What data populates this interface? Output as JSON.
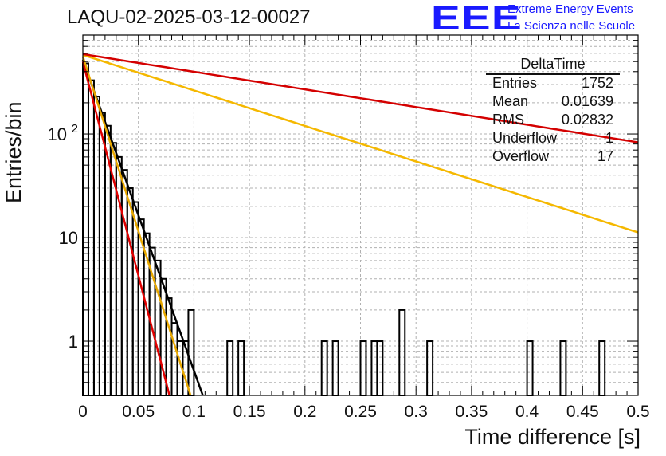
{
  "title": "LAQU-02-2025-03-12-00027",
  "logo": {
    "text": "EEE",
    "line1": "Extreme Energy Events",
    "line2": "La Scienza nelle Scuole",
    "color": "#1a1aff"
  },
  "stats_box": {
    "name": "DeltaTime",
    "rows": [
      {
        "label": "Entries",
        "value": "1752"
      },
      {
        "label": "Mean",
        "value": "0.01639"
      },
      {
        "label": "RMS",
        "value": "0.02832"
      },
      {
        "label": "Underflow",
        "value": "1"
      },
      {
        "label": "Overflow",
        "value": "17"
      }
    ]
  },
  "chart_data": {
    "type": "histogram",
    "xlabel": "Time difference [s]",
    "ylabel": "Entries/bin",
    "xlim": [
      0,
      0.5
    ],
    "ylim": [
      0.3,
      900
    ],
    "log_y": true,
    "grid": true,
    "x_ticks": [
      "0",
      "0.05",
      "0.1",
      "0.15",
      "0.2",
      "0.25",
      "0.3",
      "0.35",
      "0.4",
      "0.45",
      "0.5"
    ],
    "y_tick_labels": [
      {
        "value": 1,
        "label": "1"
      },
      {
        "value": 10,
        "label": "10"
      },
      {
        "value": 100,
        "label": "10",
        "exp": "2"
      }
    ],
    "bin_width": 0.005,
    "histogram": [
      {
        "x": 0.0,
        "y": 480
      },
      {
        "x": 0.005,
        "y": 330
      },
      {
        "x": 0.01,
        "y": 230
      },
      {
        "x": 0.015,
        "y": 160
      },
      {
        "x": 0.02,
        "y": 120
      },
      {
        "x": 0.025,
        "y": 82
      },
      {
        "x": 0.03,
        "y": 60
      },
      {
        "x": 0.035,
        "y": 45
      },
      {
        "x": 0.04,
        "y": 30
      },
      {
        "x": 0.045,
        "y": 22
      },
      {
        "x": 0.05,
        "y": 15
      },
      {
        "x": 0.055,
        "y": 11
      },
      {
        "x": 0.06,
        "y": 8
      },
      {
        "x": 0.065,
        "y": 6
      },
      {
        "x": 0.07,
        "y": 4
      },
      {
        "x": 0.075,
        "y": 2.6
      },
      {
        "x": 0.08,
        "y": 1.5
      },
      {
        "x": 0.085,
        "y": 1
      },
      {
        "x": 0.09,
        "y": 1
      },
      {
        "x": 0.095,
        "y": 2
      },
      {
        "x": 0.13,
        "y": 1
      },
      {
        "x": 0.14,
        "y": 1
      },
      {
        "x": 0.215,
        "y": 1
      },
      {
        "x": 0.225,
        "y": 1
      },
      {
        "x": 0.25,
        "y": 1
      },
      {
        "x": 0.26,
        "y": 1
      },
      {
        "x": 0.265,
        "y": 1
      },
      {
        "x": 0.285,
        "y": 2
      },
      {
        "x": 0.31,
        "y": 1
      },
      {
        "x": 0.4,
        "y": 1
      },
      {
        "x": 0.43,
        "y": 1
      },
      {
        "x": 0.465,
        "y": 1
      }
    ],
    "fits": [
      {
        "color": "#000000",
        "x": [
          0.0,
          0.108
        ],
        "y": [
          520,
          0.3
        ]
      },
      {
        "color": "#e8a800",
        "x": [
          0.0,
          0.097
        ],
        "y": [
          560,
          0.3
        ]
      },
      {
        "color": "#e00000",
        "x": [
          0.0,
          0.078
        ],
        "y": [
          500,
          0.3
        ]
      },
      {
        "color": "#f5b800",
        "x": [
          0.0,
          0.5
        ],
        "y": [
          580,
          11.2
        ]
      },
      {
        "color": "#d40000",
        "x": [
          0.0,
          0.5
        ],
        "y": [
          590,
          83
        ]
      }
    ]
  }
}
